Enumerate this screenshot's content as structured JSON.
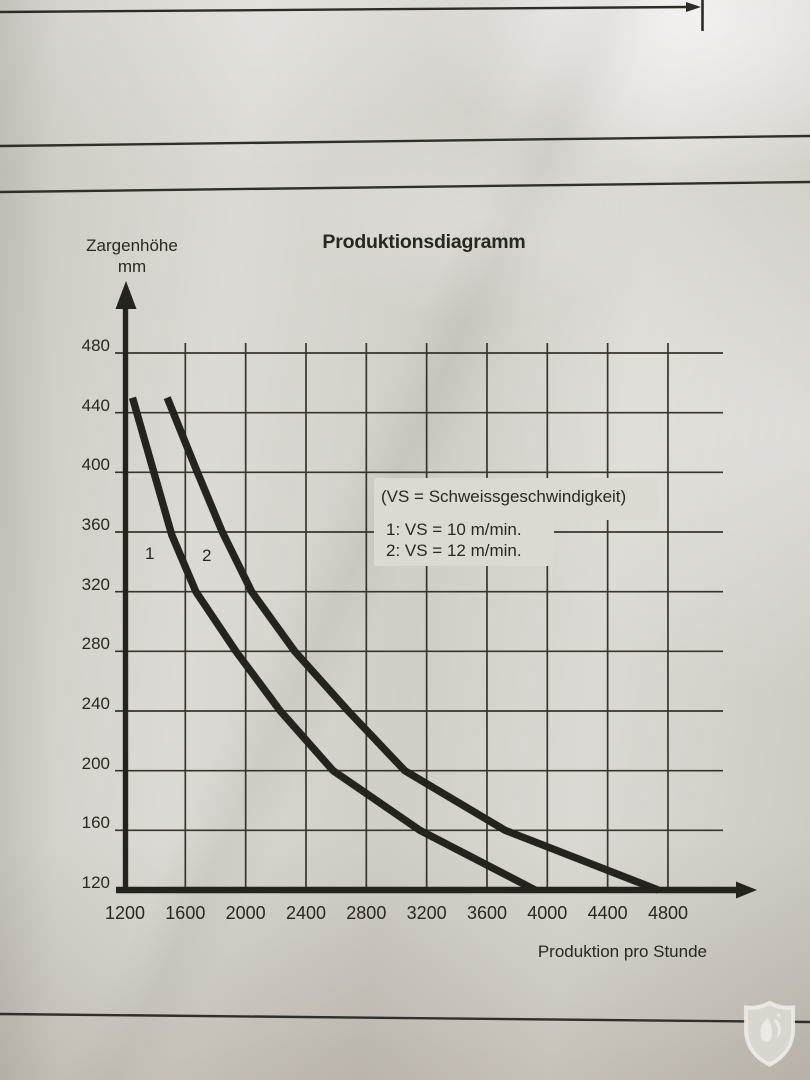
{
  "title": "Produktionsdiagramm",
  "axis_labels": {
    "y_line1": "Zargenhöhe",
    "y_line2": "mm",
    "x": "Produktion pro Stunde"
  },
  "legend": {
    "note": "(VS = Schweissgeschwindigkeit)",
    "item1": "1: VS = 10 m/min.",
    "item2": "2: VS = 12 m/min."
  },
  "curve_labels": {
    "curve1": "1",
    "curve2": "2"
  },
  "colors": {
    "paper": "#d8d5cf",
    "paper_light": "#dcd9d3",
    "ink": "#24231d",
    "grid": "#38352d",
    "watermark": "#f0eeea"
  },
  "chart_data": {
    "type": "line",
    "title": "Produktionsdiagramm",
    "xlabel": "Produktion pro Stunde",
    "ylabel": "Zargenhöhe mm",
    "xlim": [
      1200,
      5200
    ],
    "ylim": [
      120,
      510
    ],
    "grid": true,
    "legend_position": "inside upper right area",
    "x_ticks": [
      1200,
      1600,
      2000,
      2400,
      2800,
      3200,
      3600,
      4000,
      4400,
      4800
    ],
    "y_ticks": [
      480,
      440,
      400,
      360,
      320,
      280,
      240,
      200,
      160,
      120
    ],
    "x_gridlines": [
      1600,
      2000,
      2400,
      2800,
      3200,
      3600,
      4000,
      4400,
      4800
    ],
    "y_gridlines": [
      480,
      440,
      400,
      360,
      320,
      280,
      240,
      200,
      160
    ],
    "series": [
      {
        "name": "1: VS = 10 m/min.",
        "label": "1",
        "points": [
          [
            1250,
            450
          ],
          [
            1510,
            358
          ],
          [
            1670,
            320
          ],
          [
            1935,
            280
          ],
          [
            2230,
            240
          ],
          [
            2580,
            200
          ],
          [
            3155,
            160
          ],
          [
            3920,
            120
          ]
        ]
      },
      {
        "name": "2: VS = 12 m/min.",
        "label": "2",
        "points": [
          [
            1480,
            450
          ],
          [
            1680,
            400
          ],
          [
            1845,
            360
          ],
          [
            2040,
            320
          ],
          [
            2325,
            280
          ],
          [
            2680,
            240
          ],
          [
            3055,
            200
          ],
          [
            3720,
            160
          ],
          [
            4735,
            120
          ]
        ]
      }
    ]
  }
}
